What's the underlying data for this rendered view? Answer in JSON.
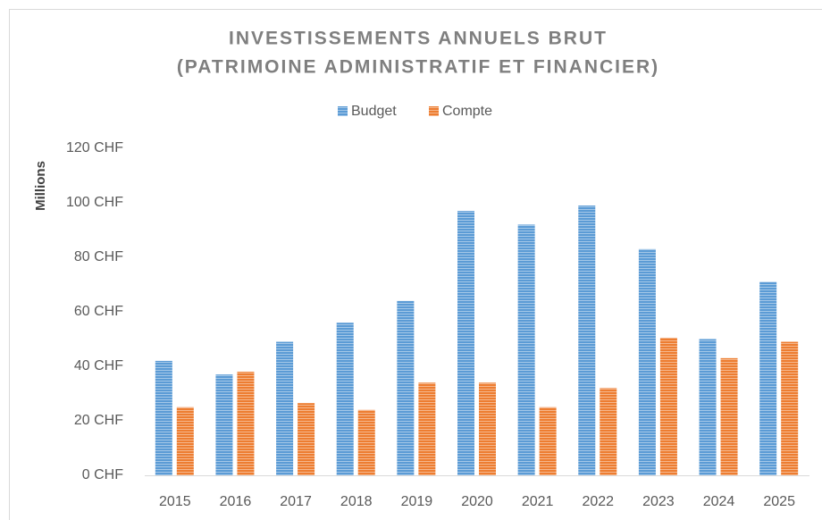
{
  "chart_data": {
    "type": "bar",
    "title": [
      "INVESTISSEMENTS ANNUELS BRUT",
      "(PATRIMOINE ADMINISTRATIF ET FINANCIER)"
    ],
    "y_label": "Millions",
    "categories": [
      "2015",
      "2016",
      "2017",
      "2018",
      "2019",
      "2020",
      "2021",
      "2022",
      "2023",
      "2024",
      "2025"
    ],
    "series": [
      {
        "name": "Budget",
        "color": "#5b9bd5",
        "values": [
          42,
          37,
          49,
          56,
          64,
          97,
          92,
          99,
          83,
          50,
          71
        ]
      },
      {
        "name": "Compte",
        "color": "#ed7d31",
        "values": [
          25,
          38,
          26.5,
          24,
          34,
          34,
          25,
          32,
          50.5,
          43,
          49
        ]
      }
    ],
    "ylim": [
      0,
      120
    ],
    "yticks": [
      {
        "value": 0,
        "label": "0 CHF"
      },
      {
        "value": 20,
        "label": "20 CHF"
      },
      {
        "value": 40,
        "label": "40 CHF"
      },
      {
        "value": 60,
        "label": "60 CHF"
      },
      {
        "value": 80,
        "label": "80 CHF"
      },
      {
        "value": 100,
        "label": "100 CHF"
      },
      {
        "value": 120,
        "label": "120 CHF"
      }
    ],
    "grid": false,
    "legend": "top"
  }
}
